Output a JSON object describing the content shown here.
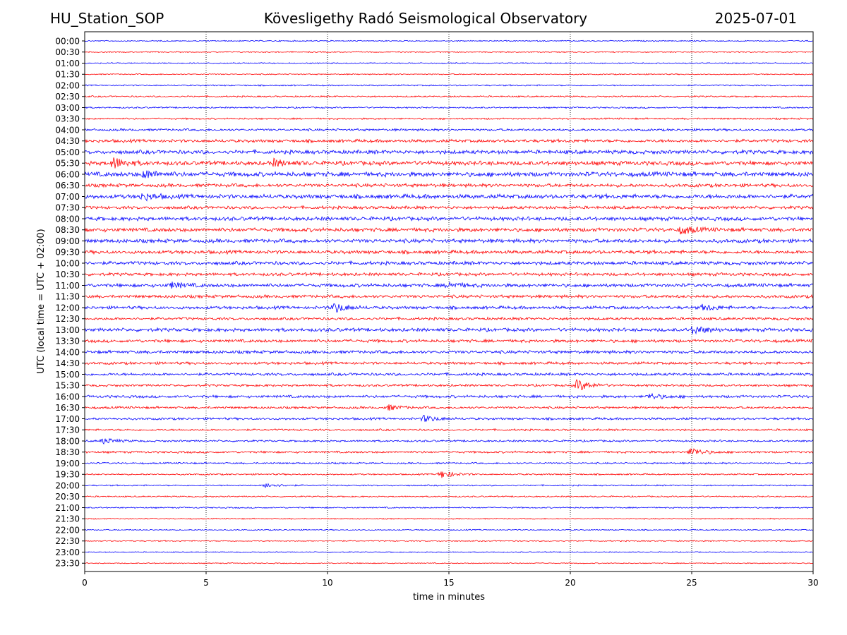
{
  "header": {
    "station": "HU_Station_SOP",
    "observatory": "Kövesligethy Radó Seismological Observatory",
    "date": "2025-07-01"
  },
  "chart_data": {
    "type": "line",
    "xlabel": "time in minutes",
    "ylabel": "UTC (local time = UTC + 02:00)",
    "xlim": [
      0,
      30
    ],
    "x_ticks": [
      "0",
      "5",
      "10",
      "15",
      "20",
      "25",
      "30"
    ],
    "x_tick_values": [
      0,
      5,
      10,
      15,
      20,
      25,
      30
    ],
    "vertical_grid": "dotted",
    "row_labels": [
      "00:00",
      "00:30",
      "01:00",
      "01:30",
      "02:00",
      "02:30",
      "03:00",
      "03:30",
      "04:00",
      "04:30",
      "05:00",
      "05:30",
      "06:00",
      "06:30",
      "07:00",
      "07:30",
      "08:00",
      "08:30",
      "09:00",
      "09:30",
      "10:00",
      "10:30",
      "11:00",
      "11:30",
      "12:00",
      "12:30",
      "13:00",
      "13:30",
      "14:00",
      "14:30",
      "15:00",
      "15:30",
      "16:00",
      "16:30",
      "17:00",
      "17:30",
      "18:00",
      "18:30",
      "19:00",
      "19:30",
      "20:00",
      "20:30",
      "21:00",
      "21:30",
      "22:00",
      "22:30",
      "23:00",
      "23:30"
    ],
    "trace_colors": [
      "#0000ff",
      "#ff0000"
    ],
    "noise_level": [
      0.15,
      0.15,
      0.15,
      0.15,
      0.18,
      0.2,
      0.2,
      0.22,
      0.3,
      0.4,
      0.5,
      0.55,
      0.6,
      0.45,
      0.55,
      0.4,
      0.5,
      0.5,
      0.5,
      0.45,
      0.45,
      0.4,
      0.45,
      0.4,
      0.4,
      0.35,
      0.45,
      0.4,
      0.4,
      0.35,
      0.35,
      0.3,
      0.35,
      0.3,
      0.3,
      0.25,
      0.25,
      0.28,
      0.22,
      0.2,
      0.18,
      0.18,
      0.18,
      0.15,
      0.15,
      0.15,
      0.13,
      0.13
    ],
    "events": [
      {
        "row": "05:30",
        "minute": 1.2,
        "amplitude": 1.6
      },
      {
        "row": "05:30",
        "minute": 7.8,
        "amplitude": 1.0
      },
      {
        "row": "06:00",
        "minute": 2.5,
        "amplitude": 1.1
      },
      {
        "row": "07:00",
        "minute": 2.4,
        "amplitude": 1.0
      },
      {
        "row": "08:30",
        "minute": 24.6,
        "amplitude": 1.2
      },
      {
        "row": "11:00",
        "minute": 3.6,
        "amplitude": 0.9
      },
      {
        "row": "11:00",
        "minute": 15.0,
        "amplitude": 0.9
      },
      {
        "row": "12:00",
        "minute": 10.3,
        "amplitude": 1.5
      },
      {
        "row": "12:00",
        "minute": 25.5,
        "amplitude": 0.9
      },
      {
        "row": "13:00",
        "minute": 25.1,
        "amplitude": 1.3
      },
      {
        "row": "15:30",
        "minute": 20.3,
        "amplitude": 1.8
      },
      {
        "row": "16:00",
        "minute": 23.3,
        "amplitude": 0.9
      },
      {
        "row": "16:30",
        "minute": 12.5,
        "amplitude": 0.8
      },
      {
        "row": "17:00",
        "minute": 14.0,
        "amplitude": 1.0
      },
      {
        "row": "18:00",
        "minute": 0.8,
        "amplitude": 0.9
      },
      {
        "row": "18:30",
        "minute": 25.0,
        "amplitude": 1.3
      },
      {
        "row": "19:30",
        "minute": 14.7,
        "amplitude": 1.2
      },
      {
        "row": "20:00",
        "minute": 7.5,
        "amplitude": 0.8
      }
    ]
  }
}
